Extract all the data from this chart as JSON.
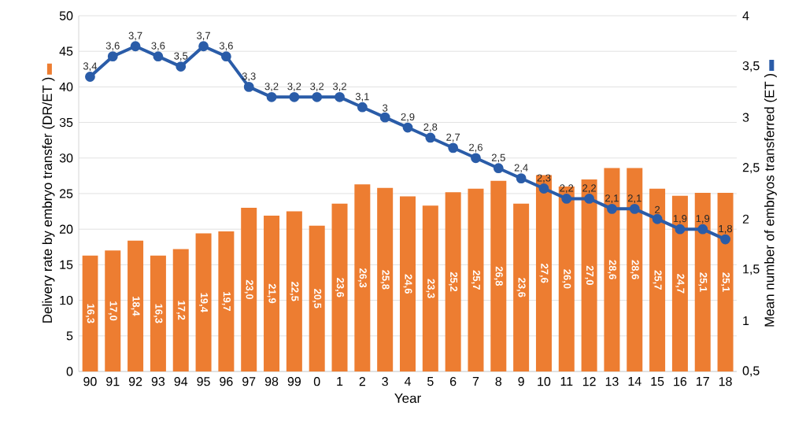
{
  "chart_data": {
    "type": "bar",
    "xlabel": "Year",
    "ylabel": "Delivery rate by embryo transfer (DR/ET )",
    "y2label": "Mean number of embryos transferred (ET )",
    "categories": [
      "90",
      "91",
      "92",
      "93",
      "94",
      "95",
      "96",
      "97",
      "98",
      "99",
      "0",
      "1",
      "2",
      "3",
      "4",
      "5",
      "6",
      "7",
      "8",
      "9",
      "10",
      "11",
      "12",
      "13",
      "14",
      "15",
      "16",
      "17",
      "18"
    ],
    "series": [
      {
        "color": "#ed7d31",
        "values": [
          16.3,
          17.0,
          18.4,
          16.3,
          17.2,
          19.4,
          19.7,
          23.0,
          21.9,
          22.5,
          20.5,
          23.6,
          26.3,
          25.8,
          24.6,
          23.3,
          25.2,
          25.7,
          26.8,
          23.6,
          27.6,
          26.0,
          27.0,
          28.6,
          28.6,
          25.7,
          24.7,
          25.1,
          25.1
        ],
        "value_labels": [
          "16,3",
          "17,0",
          "18,4",
          "16,3",
          "17,2",
          "19,4",
          "19,7",
          "23,0",
          "21,9",
          "22,5",
          "20,5",
          "23,6",
          "26,3",
          "25,8",
          "24,6",
          "23,3",
          "25,2",
          "25,7",
          "26,8",
          "23,6",
          "27,6",
          "26,0",
          "27,0",
          "28,6",
          "28,6",
          "25,7",
          "24,7",
          "25,1",
          "25,1"
        ]
      },
      {
        "type": "line",
        "axis": "y2",
        "color": "#2a5ca8",
        "marker": "circle",
        "values": [
          3.4,
          3.6,
          3.7,
          3.6,
          3.5,
          3.7,
          3.6,
          3.3,
          3.2,
          3.2,
          3.2,
          3.2,
          3.1,
          3,
          2.9,
          2.8,
          2.7,
          2.6,
          2.5,
          2.4,
          2.3,
          2.2,
          2.2,
          2.1,
          2.1,
          2,
          1.9,
          1.9,
          1.8
        ],
        "value_labels": [
          "3,4",
          "3,6",
          "3,7",
          "3,6",
          "3,5",
          "3,7",
          "3,6",
          "3,3",
          "3,2",
          "3,2",
          "3,2",
          "3,2",
          "3,1",
          "3",
          "2,9",
          "2,8",
          "2,7",
          "2,6",
          "2,5",
          "2,4",
          "2,3",
          "2,2",
          "2,2",
          "2,1",
          "2,1",
          "2",
          "1,9",
          "1,9",
          "1,8"
        ]
      }
    ],
    "ylim": [
      0,
      50
    ],
    "yticks": [
      0,
      5,
      10,
      15,
      20,
      25,
      30,
      35,
      40,
      45,
      50
    ],
    "y2lim": [
      0.5,
      4
    ],
    "y2ticks": [
      {
        "value": 0.5,
        "label": "0,5"
      },
      1,
      {
        "value": 1.5,
        "label": "1,5"
      },
      2,
      {
        "value": 2.5,
        "label": "2,5"
      },
      3,
      {
        "value": 3.5,
        "label": "3,5"
      },
      4
    ],
    "grid": "y"
  }
}
